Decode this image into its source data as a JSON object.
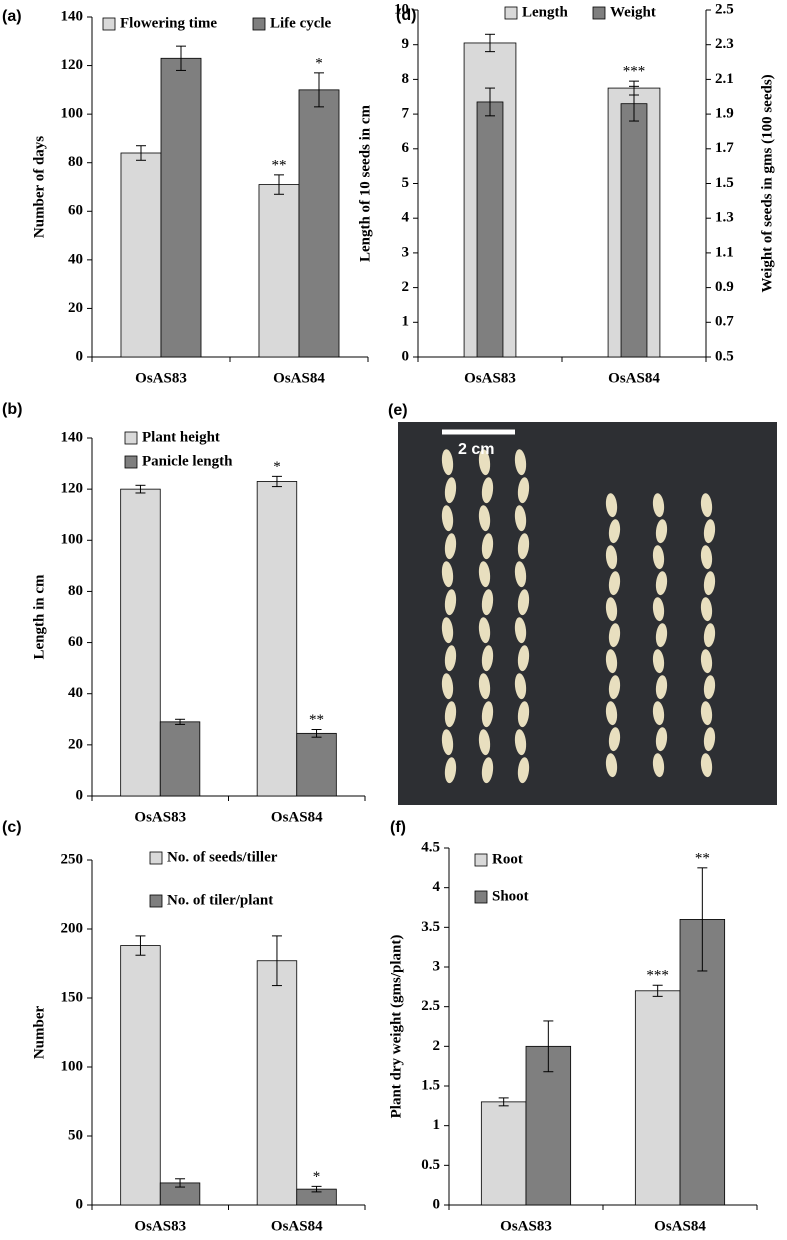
{
  "chart_data": [
    {
      "type": "bar",
      "panel": "(a)",
      "y_label": "Number of days",
      "categories": [
        "OsAS83",
        "OsAS84"
      ],
      "ylim": [
        0,
        140
      ],
      "yticks": [
        0,
        20,
        40,
        60,
        80,
        100,
        120,
        140
      ],
      "legend": "top",
      "bar_mode": "grouped",
      "series": [
        {
          "name": "Flowering time",
          "color": "#d9d9d9",
          "values": [
            84,
            71
          ],
          "errors": [
            3,
            4
          ],
          "significance": [
            null,
            "**"
          ]
        },
        {
          "name": "Life cycle",
          "color": "#7f7f7f",
          "values": [
            123,
            110
          ],
          "errors": [
            5,
            7
          ],
          "significance": [
            null,
            "*"
          ]
        }
      ]
    },
    {
      "type": "bar",
      "panel": "(d)",
      "y_label": "Length of 10 seeds in cm",
      "y2_label": "Weight of seeds in gms (100 seeds)",
      "categories": [
        "OsAS83",
        "OsAS84"
      ],
      "ylim": [
        0,
        10
      ],
      "yticks": [
        0,
        1,
        2,
        3,
        4,
        5,
        6,
        7,
        8,
        9,
        10
      ],
      "y2lim": [
        0.5,
        2.5
      ],
      "y2ticks": [
        0.5,
        0.7,
        0.9,
        1.1,
        1.3,
        1.5,
        1.7,
        1.9,
        2.1,
        2.3,
        2.5
      ],
      "legend": "top",
      "bar_mode": "overlap",
      "series": [
        {
          "name": "Length",
          "color": "#d9d9d9",
          "values": [
            9.05,
            7.75
          ],
          "errors": [
            0.25,
            0.2
          ],
          "significance": [
            null,
            "***"
          ]
        },
        {
          "name": "Weight",
          "color": "#7f7f7f",
          "axis": "y2",
          "values": [
            1.97,
            1.96
          ],
          "errors": [
            0.08,
            0.1
          ],
          "significance": [
            null,
            null
          ]
        }
      ]
    },
    {
      "type": "bar",
      "panel": "(b)",
      "y_label": "Length in cm",
      "categories": [
        "OsAS83",
        "OsAS84"
      ],
      "ylim": [
        0,
        140
      ],
      "yticks": [
        0,
        20,
        40,
        60,
        80,
        100,
        120,
        140
      ],
      "legend": "upper-left",
      "bar_mode": "grouped",
      "series": [
        {
          "name": "Plant height",
          "color": "#d9d9d9",
          "values": [
            120,
            123
          ],
          "errors": [
            1.5,
            2
          ],
          "significance": [
            null,
            "*"
          ]
        },
        {
          "name": "Panicle length",
          "color": "#7f7f7f",
          "values": [
            29,
            24.5
          ],
          "errors": [
            1,
            1.5
          ],
          "significance": [
            null,
            "**"
          ]
        }
      ]
    },
    {
      "type": "bar",
      "panel": "(c)",
      "y_label": "Number",
      "categories": [
        "OsAS83",
        "OsAS84"
      ],
      "ylim": [
        0,
        250
      ],
      "yticks": [
        0,
        50,
        100,
        150,
        200,
        250
      ],
      "legend": "upper-left",
      "bar_mode": "grouped",
      "series": [
        {
          "name": "No. of seeds/tiller",
          "color": "#d9d9d9",
          "values": [
            188,
            177
          ],
          "errors": [
            7,
            18
          ],
          "significance": [
            null,
            null
          ]
        },
        {
          "name": "No. of tiler/plant",
          "color": "#7f7f7f",
          "values": [
            16,
            11.5
          ],
          "errors": [
            3,
            2
          ],
          "significance": [
            null,
            "*"
          ]
        }
      ]
    },
    {
      "type": "bar",
      "panel": "(f)",
      "y_label": "Plant dry weight (gms/plant)",
      "categories": [
        "OsAS83",
        "OsAS84"
      ],
      "ylim": [
        0,
        4.5
      ],
      "yticks": [
        0,
        0.5,
        1,
        1.5,
        2,
        2.5,
        3,
        3.5,
        4,
        4.5
      ],
      "legend": "upper-left",
      "bar_mode": "grouped",
      "series": [
        {
          "name": "Root",
          "color": "#d9d9d9",
          "values": [
            1.3,
            2.7
          ],
          "errors": [
            0.05,
            0.07
          ],
          "significance": [
            null,
            "***"
          ]
        },
        {
          "name": "Shoot",
          "color": "#7f7f7f",
          "values": [
            2.0,
            3.6
          ],
          "errors": [
            0.32,
            0.65
          ],
          "significance": [
            null,
            "**"
          ]
        }
      ]
    }
  ],
  "image_panel": {
    "panel": "(e)",
    "scale_label": "2 cm"
  }
}
